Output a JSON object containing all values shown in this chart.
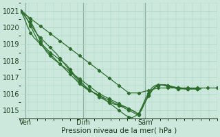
{
  "xlabel": "Pression niveau de la mer( hPa )",
  "bg_color": "#cce8dc",
  "grid_color": "#aad4c4",
  "line_color": "#2d6e2d",
  "markersize": 2.2,
  "linewidth": 0.9,
  "ylim": [
    1014.5,
    1021.5
  ],
  "xlim": [
    0,
    120
  ],
  "xtick_labels": [
    "Ven",
    "Dim",
    "Sam"
  ],
  "xtick_positions": [
    3,
    38,
    76
  ],
  "ytick_positions": [
    1015,
    1016,
    1017,
    1018,
    1019,
    1020,
    1021
  ],
  "series": [
    {
      "x": [
        0,
        2,
        4,
        6,
        8,
        10,
        12,
        14,
        16,
        18,
        20,
        22,
        24,
        26,
        28,
        30,
        32,
        34,
        36,
        38,
        40,
        42,
        44,
        46,
        48,
        50,
        52,
        54,
        56,
        58,
        60,
        62,
        64,
        66,
        68,
        70,
        72,
        74,
        76,
        78,
        80,
        82,
        84,
        86,
        88,
        90,
        92,
        94,
        96,
        98,
        100,
        102,
        104,
        106,
        108,
        110,
        112,
        114,
        116,
        118,
        120
      ],
      "y": [
        1021.0,
        1020.85,
        1020.7,
        1020.55,
        1020.4,
        1020.25,
        1020.1,
        1019.95,
        1019.8,
        1019.65,
        1019.5,
        1019.35,
        1019.2,
        1019.05,
        1018.9,
        1018.75,
        1018.6,
        1018.45,
        1018.3,
        1018.15,
        1018.0,
        1017.85,
        1017.7,
        1017.55,
        1017.4,
        1017.25,
        1017.1,
        1016.95,
        1016.8,
        1016.65,
        1016.5,
        1016.35,
        1016.2,
        1016.05,
        1016.05,
        1016.05,
        1016.05,
        1016.1,
        1016.15,
        1016.2,
        1016.25,
        1016.3,
        1016.35,
        1016.35,
        1016.35,
        1016.35,
        1016.35,
        1016.35,
        1016.35,
        1016.35,
        1016.35,
        1016.35,
        1016.35,
        1016.35,
        1016.35,
        1016.35,
        1016.35,
        1016.35,
        1016.35,
        1016.35,
        1016.35
      ]
    },
    {
      "x": [
        0,
        2,
        4,
        6,
        8,
        10,
        12,
        14,
        16,
        18,
        20,
        22,
        24,
        26,
        28,
        30,
        32,
        34,
        36,
        38,
        40,
        42,
        44,
        46,
        48,
        50,
        52,
        54,
        56,
        58,
        60,
        62,
        64,
        66,
        68,
        70,
        72,
        74,
        76,
        78,
        80,
        82,
        84,
        86,
        88,
        90,
        92,
        94,
        96,
        98,
        100,
        102,
        104,
        106,
        108,
        110
      ],
      "y": [
        1021.0,
        1020.8,
        1020.5,
        1020.1,
        1019.7,
        1019.3,
        1019.1,
        1018.9,
        1018.7,
        1018.5,
        1018.35,
        1018.2,
        1018.05,
        1017.9,
        1017.75,
        1017.5,
        1017.25,
        1017.0,
        1016.8,
        1016.6,
        1016.4,
        1016.25,
        1016.1,
        1015.95,
        1015.8,
        1015.7,
        1015.6,
        1015.5,
        1015.4,
        1015.35,
        1015.3,
        1015.25,
        1015.2,
        1015.1,
        1015.0,
        1014.9,
        1014.75,
        1015.1,
        1015.5,
        1015.9,
        1016.2,
        1016.4,
        1016.5,
        1016.55,
        1016.55,
        1016.5,
        1016.45,
        1016.4,
        1016.35,
        1016.35,
        1016.3,
        1016.3,
        1016.3,
        1016.3,
        1016.3,
        1016.3
      ]
    },
    {
      "x": [
        0,
        2,
        4,
        6,
        8,
        10,
        12,
        14,
        16,
        18,
        20,
        22,
        24,
        26,
        28,
        30,
        32,
        34,
        36,
        38,
        40,
        42,
        44,
        46,
        48,
        50,
        52,
        54,
        56,
        58,
        60,
        62,
        64,
        66,
        68,
        70,
        72,
        74,
        76,
        78,
        80,
        82,
        84,
        86,
        88,
        90,
        92,
        94,
        96,
        98,
        100,
        102,
        104,
        106,
        108,
        110
      ],
      "y": [
        1021.0,
        1020.75,
        1020.5,
        1020.2,
        1019.9,
        1019.6,
        1019.4,
        1019.2,
        1019.0,
        1018.8,
        1018.6,
        1018.4,
        1018.15,
        1017.9,
        1017.65,
        1017.4,
        1017.15,
        1016.9,
        1016.7,
        1016.5,
        1016.35,
        1016.2,
        1016.1,
        1016.0,
        1015.9,
        1015.8,
        1015.7,
        1015.6,
        1015.5,
        1015.4,
        1015.3,
        1015.2,
        1015.1,
        1015.0,
        1014.9,
        1014.8,
        1014.7,
        1015.05,
        1015.5,
        1015.9,
        1016.2,
        1016.4,
        1016.5,
        1016.55,
        1016.55,
        1016.5,
        1016.45,
        1016.4,
        1016.35,
        1016.35,
        1016.3,
        1016.3,
        1016.3,
        1016.3,
        1016.3,
        1016.3
      ]
    },
    {
      "x": [
        0,
        2,
        4,
        6,
        8,
        10,
        12,
        14,
        16,
        18,
        20,
        22,
        24,
        26,
        28,
        30,
        32,
        34,
        36,
        38,
        40,
        42,
        44,
        46,
        48,
        50,
        52,
        54,
        56,
        58,
        60,
        62,
        64,
        66,
        68,
        70,
        72,
        74,
        76,
        78,
        80,
        82,
        84,
        86,
        88,
        90,
        92,
        94,
        96,
        98,
        100,
        102,
        104,
        106,
        108,
        110
      ],
      "y": [
        1021.0,
        1020.6,
        1020.1,
        1019.7,
        1019.4,
        1019.2,
        1019.0,
        1018.8,
        1018.6,
        1018.4,
        1018.2,
        1018.0,
        1017.8,
        1017.6,
        1017.4,
        1017.2,
        1017.0,
        1016.8,
        1016.6,
        1016.45,
        1016.3,
        1016.2,
        1016.1,
        1016.0,
        1015.9,
        1015.75,
        1015.6,
        1015.45,
        1015.3,
        1015.15,
        1015.0,
        1014.85,
        1014.7,
        1014.6,
        1014.55,
        1014.65,
        1014.8,
        1015.2,
        1015.65,
        1016.05,
        1016.35,
        1016.5,
        1016.55,
        1016.55,
        1016.5,
        1016.45,
        1016.4,
        1016.35,
        1016.3,
        1016.3,
        1016.3,
        1016.3,
        1016.3,
        1016.3,
        1016.3,
        1016.3
      ]
    },
    {
      "x": [
        0,
        2,
        4,
        6,
        8,
        10,
        12,
        14,
        16,
        18,
        20,
        22,
        24,
        26,
        28,
        30,
        32,
        34,
        36,
        38,
        40,
        42,
        44,
        46,
        48,
        50,
        52,
        54,
        56,
        58,
        60,
        62,
        64,
        66,
        68,
        70,
        72,
        74,
        76,
        78,
        80,
        82,
        84,
        86,
        88,
        90,
        92,
        94,
        96,
        98,
        100,
        102,
        104,
        106,
        108,
        110
      ],
      "y": [
        1021.0,
        1020.9,
        1020.7,
        1020.4,
        1020.0,
        1019.6,
        1019.2,
        1018.8,
        1018.5,
        1018.3,
        1018.1,
        1017.95,
        1017.8,
        1017.65,
        1017.5,
        1017.35,
        1017.2,
        1017.05,
        1016.9,
        1016.75,
        1016.6,
        1016.45,
        1016.3,
        1016.15,
        1016.0,
        1015.9,
        1015.8,
        1015.7,
        1015.6,
        1015.5,
        1015.4,
        1015.3,
        1015.2,
        1015.1,
        1015.0,
        1014.9,
        1014.75,
        1015.1,
        1015.5,
        1015.85,
        1016.15,
        1016.4,
        1016.5,
        1016.55,
        1016.5,
        1016.45,
        1016.4,
        1016.35,
        1016.3,
        1016.3,
        1016.3,
        1016.3,
        1016.3,
        1016.3,
        1016.3,
        1016.3
      ]
    }
  ]
}
